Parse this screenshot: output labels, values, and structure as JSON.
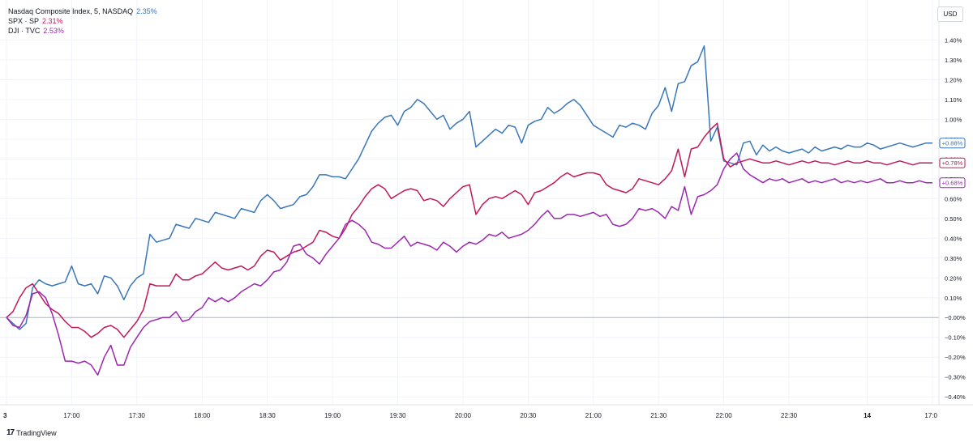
{
  "legend": [
    {
      "name": "Nasdaq Composite Index, 5, NASDAQ",
      "value": "2.35%",
      "color": "#3a77b8"
    },
    {
      "name": "SPX · SP",
      "value": "2.31%",
      "color": "#c2185b"
    },
    {
      "name": "DJI · TVC",
      "value": "2.53%",
      "color": "#9c27b0"
    }
  ],
  "currency_button": "USD",
  "brand": {
    "icon": "tradingview-logo-icon",
    "label": "TradingView"
  },
  "chart_data": {
    "type": "line",
    "x_ticks": [
      "3",
      "17:00",
      "17:30",
      "18:00",
      "18:30",
      "19:00",
      "19:30",
      "20:00",
      "20:30",
      "21:00",
      "21:30",
      "22:00",
      "22:30",
      "14",
      "17:0"
    ],
    "y_ticks": [
      "1.40%",
      "1.30%",
      "1.20%",
      "1.10%",
      "1.00%",
      "0.90%",
      "0.80%",
      "0.70%",
      "0.60%",
      "0.50%",
      "0.40%",
      "0.30%",
      "0.20%",
      "0.10%",
      "−0.00%",
      "−0.10%",
      "−0.20%",
      "−0.30%",
      "−0.40%"
    ],
    "y_tick_values": [
      1.4,
      1.3,
      1.2,
      1.1,
      1.0,
      0.9,
      0.8,
      0.7,
      0.6,
      0.5,
      0.4,
      0.3,
      0.2,
      0.1,
      0.0,
      -0.1,
      -0.2,
      -0.3,
      -0.4
    ],
    "ylim": [
      -0.44,
      1.52
    ],
    "x_tick_positions": [
      0,
      10,
      20,
      30,
      40,
      50,
      60,
      70,
      80,
      90,
      100,
      110,
      120,
      132,
      142
    ],
    "x_count": 143,
    "zero_line": 0,
    "series": [
      {
        "name": "Nasdaq Composite Index",
        "color": "#3a77b8",
        "last_label": "+0.88%",
        "x": [
          0,
          1,
          2,
          3,
          4,
          5,
          6,
          7,
          8,
          9,
          10,
          11,
          12,
          13,
          14,
          15,
          16,
          17,
          18,
          19,
          20,
          21,
          22,
          23,
          24,
          25,
          26,
          27,
          28,
          29,
          30,
          31,
          32,
          33,
          34,
          35,
          36,
          37,
          38,
          39,
          40,
          41,
          42,
          43,
          44,
          45,
          46,
          47,
          48,
          49,
          50,
          51,
          52,
          53,
          54,
          55,
          56,
          57,
          58,
          59,
          60,
          61,
          62,
          63,
          64,
          65,
          66,
          67,
          68,
          69,
          70,
          71,
          72,
          73,
          74,
          75,
          76,
          77,
          78,
          79,
          80,
          81,
          82,
          83,
          84,
          85,
          86,
          87,
          88,
          89,
          90,
          91,
          92,
          93,
          94,
          95,
          96,
          97,
          98,
          99,
          100,
          101,
          102,
          103,
          104,
          105,
          106,
          107,
          108,
          109,
          110,
          111,
          112,
          113,
          114,
          115,
          116,
          117,
          118,
          119,
          120,
          121,
          122,
          123,
          124,
          125,
          126,
          127,
          128,
          129,
          130,
          131,
          132,
          133,
          134,
          135,
          136,
          137,
          138,
          139,
          140,
          141,
          142
        ],
        "values": [
          0.0,
          -0.03,
          -0.06,
          -0.03,
          0.15,
          0.19,
          0.17,
          0.16,
          0.17,
          0.18,
          0.26,
          0.17,
          0.16,
          0.17,
          0.12,
          0.21,
          0.2,
          0.16,
          0.09,
          0.16,
          0.2,
          0.22,
          0.42,
          0.38,
          0.39,
          0.4,
          0.47,
          0.46,
          0.45,
          0.5,
          0.49,
          0.48,
          0.53,
          0.52,
          0.51,
          0.5,
          0.55,
          0.54,
          0.53,
          0.59,
          0.62,
          0.59,
          0.55,
          0.56,
          0.57,
          0.61,
          0.62,
          0.66,
          0.72,
          0.72,
          0.71,
          0.71,
          0.7,
          0.75,
          0.8,
          0.87,
          0.94,
          0.98,
          1.01,
          1.02,
          0.97,
          1.04,
          1.06,
          1.1,
          1.08,
          1.04,
          1.0,
          1.02,
          0.95,
          0.98,
          1.0,
          1.04,
          0.86,
          0.89,
          0.92,
          0.95,
          0.93,
          0.97,
          0.96,
          0.88,
          0.97,
          0.99,
          1.0,
          1.06,
          1.03,
          1.05,
          1.08,
          1.1,
          1.07,
          1.02,
          0.97,
          0.95,
          0.93,
          0.91,
          0.97,
          0.96,
          0.98,
          0.97,
          0.95,
          1.03,
          1.07,
          1.16,
          1.04,
          1.18,
          1.19,
          1.27,
          1.29,
          1.37,
          0.89,
          0.96,
          0.79,
          0.78,
          0.77,
          0.88,
          0.89,
          0.82,
          0.87,
          0.84,
          0.86,
          0.84,
          0.83,
          0.84,
          0.85,
          0.83,
          0.86,
          0.84,
          0.85,
          0.86,
          0.85,
          0.87,
          0.86,
          0.86,
          0.88,
          0.87,
          0.85,
          0.86,
          0.87,
          0.88,
          0.87,
          0.86,
          0.87,
          0.88,
          0.88
        ]
      },
      {
        "name": "SPX",
        "color": "#c2185b",
        "last_label": "+0.78%",
        "x": [
          0,
          1,
          2,
          3,
          4,
          5,
          6,
          7,
          8,
          9,
          10,
          11,
          12,
          13,
          14,
          15,
          16,
          17,
          18,
          19,
          20,
          21,
          22,
          23,
          24,
          25,
          26,
          27,
          28,
          29,
          30,
          31,
          32,
          33,
          34,
          35,
          36,
          37,
          38,
          39,
          40,
          41,
          42,
          43,
          44,
          45,
          46,
          47,
          48,
          49,
          50,
          51,
          52,
          53,
          54,
          55,
          56,
          57,
          58,
          59,
          60,
          61,
          62,
          63,
          64,
          65,
          66,
          67,
          68,
          69,
          70,
          71,
          72,
          73,
          74,
          75,
          76,
          77,
          78,
          79,
          80,
          81,
          82,
          83,
          84,
          85,
          86,
          87,
          88,
          89,
          90,
          91,
          92,
          93,
          94,
          95,
          96,
          97,
          98,
          99,
          100,
          101,
          102,
          103,
          104,
          105,
          106,
          107,
          108,
          109,
          110,
          111,
          112,
          113,
          114,
          115,
          116,
          117,
          118,
          119,
          120,
          121,
          122,
          123,
          124,
          125,
          126,
          127,
          128,
          129,
          130,
          131,
          132,
          133,
          134,
          135,
          136,
          137,
          138,
          139,
          140,
          141,
          142
        ],
        "values": [
          0.0,
          0.03,
          0.1,
          0.15,
          0.17,
          0.12,
          0.07,
          0.04,
          0.02,
          -0.02,
          -0.05,
          -0.05,
          -0.07,
          -0.1,
          -0.08,
          -0.05,
          -0.04,
          -0.06,
          -0.1,
          -0.06,
          -0.02,
          0.04,
          0.17,
          0.16,
          0.16,
          0.16,
          0.22,
          0.19,
          0.19,
          0.21,
          0.22,
          0.25,
          0.28,
          0.25,
          0.24,
          0.25,
          0.26,
          0.24,
          0.26,
          0.31,
          0.34,
          0.33,
          0.29,
          0.31,
          0.33,
          0.34,
          0.36,
          0.38,
          0.44,
          0.43,
          0.41,
          0.4,
          0.45,
          0.52,
          0.56,
          0.61,
          0.65,
          0.67,
          0.65,
          0.6,
          0.62,
          0.64,
          0.65,
          0.64,
          0.59,
          0.6,
          0.59,
          0.56,
          0.6,
          0.63,
          0.66,
          0.67,
          0.52,
          0.57,
          0.6,
          0.61,
          0.6,
          0.62,
          0.64,
          0.62,
          0.57,
          0.63,
          0.64,
          0.66,
          0.68,
          0.71,
          0.73,
          0.71,
          0.72,
          0.73,
          0.73,
          0.72,
          0.67,
          0.65,
          0.64,
          0.63,
          0.65,
          0.7,
          0.69,
          0.68,
          0.67,
          0.7,
          0.74,
          0.85,
          0.71,
          0.85,
          0.86,
          0.91,
          0.95,
          0.98,
          0.8,
          0.76,
          0.78,
          0.79,
          0.8,
          0.79,
          0.78,
          0.78,
          0.79,
          0.78,
          0.77,
          0.78,
          0.79,
          0.78,
          0.79,
          0.78,
          0.78,
          0.77,
          0.78,
          0.79,
          0.78,
          0.78,
          0.79,
          0.78,
          0.78,
          0.77,
          0.78,
          0.79,
          0.78,
          0.77,
          0.78,
          0.78,
          0.78
        ]
      },
      {
        "name": "DJI",
        "color": "#9c27b0",
        "last_label": "+0.68%",
        "x": [
          0,
          1,
          2,
          3,
          4,
          5,
          6,
          7,
          8,
          9,
          10,
          11,
          12,
          13,
          14,
          15,
          16,
          17,
          18,
          19,
          20,
          21,
          22,
          23,
          24,
          25,
          26,
          27,
          28,
          29,
          30,
          31,
          32,
          33,
          34,
          35,
          36,
          37,
          38,
          39,
          40,
          41,
          42,
          43,
          44,
          45,
          46,
          47,
          48,
          49,
          50,
          51,
          52,
          53,
          54,
          55,
          56,
          57,
          58,
          59,
          60,
          61,
          62,
          63,
          64,
          65,
          66,
          67,
          68,
          69,
          70,
          71,
          72,
          73,
          74,
          75,
          76,
          77,
          78,
          79,
          80,
          81,
          82,
          83,
          84,
          85,
          86,
          87,
          88,
          89,
          90,
          91,
          92,
          93,
          94,
          95,
          96,
          97,
          98,
          99,
          100,
          101,
          102,
          103,
          104,
          105,
          106,
          107,
          108,
          109,
          110,
          111,
          112,
          113,
          114,
          115,
          116,
          117,
          118,
          119,
          120,
          121,
          122,
          123,
          124,
          125,
          126,
          127,
          128,
          129,
          130,
          131,
          132,
          133,
          134,
          135,
          136,
          137,
          138,
          139,
          140,
          141,
          142
        ],
        "values": [
          0.0,
          -0.04,
          -0.05,
          0.01,
          0.12,
          0.13,
          0.1,
          0.02,
          -0.09,
          -0.22,
          -0.22,
          -0.23,
          -0.22,
          -0.24,
          -0.29,
          -0.2,
          -0.14,
          -0.24,
          -0.24,
          -0.15,
          -0.1,
          -0.05,
          -0.02,
          -0.01,
          0.0,
          0.0,
          0.03,
          -0.02,
          -0.01,
          0.03,
          0.05,
          0.1,
          0.08,
          0.1,
          0.08,
          0.1,
          0.13,
          0.15,
          0.17,
          0.16,
          0.19,
          0.23,
          0.24,
          0.28,
          0.36,
          0.37,
          0.32,
          0.3,
          0.27,
          0.32,
          0.36,
          0.4,
          0.47,
          0.49,
          0.47,
          0.44,
          0.38,
          0.37,
          0.35,
          0.35,
          0.38,
          0.41,
          0.36,
          0.38,
          0.37,
          0.36,
          0.34,
          0.38,
          0.36,
          0.33,
          0.36,
          0.38,
          0.37,
          0.39,
          0.42,
          0.41,
          0.43,
          0.4,
          0.41,
          0.42,
          0.44,
          0.47,
          0.51,
          0.54,
          0.5,
          0.5,
          0.52,
          0.52,
          0.51,
          0.52,
          0.53,
          0.51,
          0.52,
          0.47,
          0.46,
          0.47,
          0.5,
          0.55,
          0.54,
          0.55,
          0.53,
          0.5,
          0.56,
          0.54,
          0.66,
          0.52,
          0.61,
          0.62,
          0.64,
          0.67,
          0.75,
          0.8,
          0.83,
          0.75,
          0.72,
          0.7,
          0.68,
          0.7,
          0.69,
          0.7,
          0.68,
          0.69,
          0.7,
          0.68,
          0.69,
          0.68,
          0.69,
          0.7,
          0.68,
          0.69,
          0.68,
          0.69,
          0.68,
          0.69,
          0.7,
          0.68,
          0.68,
          0.69,
          0.68,
          0.68,
          0.69,
          0.68,
          0.68
        ]
      }
    ]
  }
}
